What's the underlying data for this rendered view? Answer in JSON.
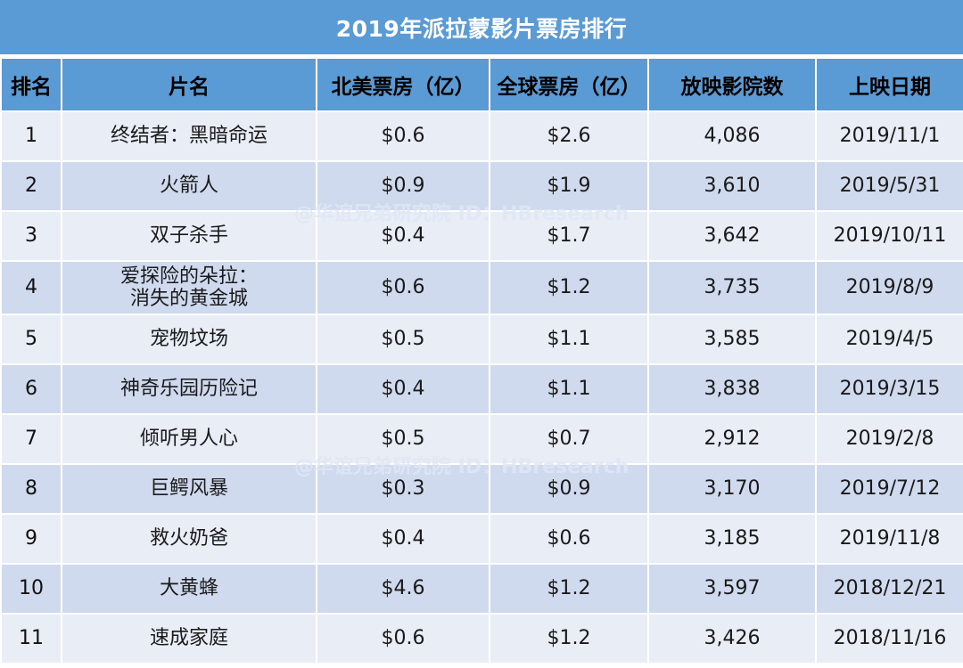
{
  "title": "2019年派拉蒙影片票房排行",
  "watermark_text": "@华谊兄弟研究院 ID：HBresearch",
  "columns": [
    "排名",
    "片名",
    "北美票房（亿）",
    "全球票房（亿）",
    "放映影院数",
    "上映日期"
  ],
  "rows": [
    {
      "rank": "1",
      "title": "终结者：黑暗命运",
      "na": "$0.6",
      "global": "$2.6",
      "theaters": "4,086",
      "date": "2019/11/1"
    },
    {
      "rank": "2",
      "title": "火箭人",
      "na": "$0.9",
      "global": "$1.9",
      "theaters": "3,610",
      "date": "2019/5/31"
    },
    {
      "rank": "3",
      "title": "双子杀手",
      "na": "$0.4",
      "global": "$1.7",
      "theaters": "3,642",
      "date": "2019/10/11"
    },
    {
      "rank": "4",
      "title_line1": "爱探险的朵拉：",
      "title_line2": "消失的黄金城",
      "na": "$0.6",
      "global": "$1.2",
      "theaters": "3,735",
      "date": "2019/8/9"
    },
    {
      "rank": "5",
      "title": "宠物坟场",
      "na": "$0.5",
      "global": "$1.1",
      "theaters": "3,585",
      "date": "2019/4/5"
    },
    {
      "rank": "6",
      "title": "神奇乐园历险记",
      "na": "$0.4",
      "global": "$1.1",
      "theaters": "3,838",
      "date": "2019/3/15"
    },
    {
      "rank": "7",
      "title": "倾听男人心",
      "na": "$0.5",
      "global": "$0.7",
      "theaters": "2,912",
      "date": "2019/2/8"
    },
    {
      "rank": "8",
      "title": "巨鳄风暴",
      "na": "$0.3",
      "global": "$0.9",
      "theaters": "3,170",
      "date": "2019/7/12"
    },
    {
      "rank": "9",
      "title": "救火奶爸",
      "na": "$0.4",
      "global": "$0.6",
      "theaters": "3,185",
      "date": "2019/11/8"
    },
    {
      "rank": "10",
      "title": "大黄蜂",
      "na": "$4.6",
      "global": "$1.2",
      "theaters": "3,597",
      "date": "2018/12/21"
    },
    {
      "rank": "11",
      "title": "速成家庭",
      "na": "$0.6",
      "global": "$1.2",
      "theaters": "3,426",
      "date": "2018/11/16"
    }
  ],
  "colors": {
    "header_blue": "#5b9bd5",
    "row_light": "#e8edf6",
    "row_dark": "#cfdaee"
  },
  "chart_data": {
    "type": "table",
    "title": "2019年派拉蒙影片票房排行",
    "columns": [
      "排名",
      "片名",
      "北美票房（亿）",
      "全球票房（亿）",
      "放映影院数",
      "上映日期"
    ],
    "rows": [
      [
        "1",
        "终结者：黑暗命运",
        "$0.6",
        "$2.6",
        "4,086",
        "2019/11/1"
      ],
      [
        "2",
        "火箭人",
        "$0.9",
        "$1.9",
        "3,610",
        "2019/5/31"
      ],
      [
        "3",
        "双子杀手",
        "$0.4",
        "$1.7",
        "3,642",
        "2019/10/11"
      ],
      [
        "4",
        "爱探险的朵拉：消失的黄金城",
        "$0.6",
        "$1.2",
        "3,735",
        "2019/8/9"
      ],
      [
        "5",
        "宠物坟场",
        "$0.5",
        "$1.1",
        "3,585",
        "2019/4/5"
      ],
      [
        "6",
        "神奇乐园历险记",
        "$0.4",
        "$1.1",
        "3,838",
        "2019/3/15"
      ],
      [
        "7",
        "倾听男人心",
        "$0.5",
        "$0.7",
        "2,912",
        "2019/2/8"
      ],
      [
        "8",
        "巨鳄风暴",
        "$0.3",
        "$0.9",
        "3,170",
        "2019/7/12"
      ],
      [
        "9",
        "救火奶爸",
        "$0.4",
        "$0.6",
        "3,185",
        "2019/11/8"
      ],
      [
        "10",
        "大黄蜂",
        "$4.6",
        "$1.2",
        "3,597",
        "2018/12/21"
      ],
      [
        "11",
        "速成家庭",
        "$0.6",
        "$1.2",
        "3,426",
        "2018/11/16"
      ]
    ]
  }
}
